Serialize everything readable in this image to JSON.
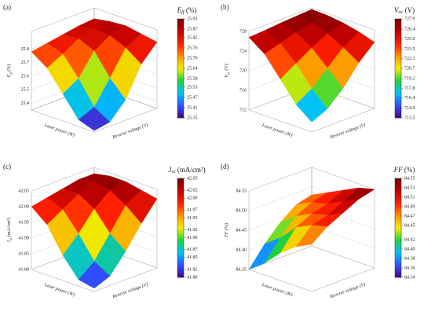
{
  "chart_data": [
    {
      "type": "surface",
      "panel": "(a)",
      "symbol": "E",
      "sub": "ff",
      "unit": "(%)",
      "xlabel": "Laser power (W)",
      "ylabel": "Reverse voltage (V)",
      "zlim": [
        25.35,
        25.93
      ],
      "zticks": [
        25.4,
        25.5,
        25.6,
        25.7,
        25.8
      ],
      "colorbar_ticks": [
        25.35,
        25.41,
        25.47,
        25.53,
        25.58,
        25.64,
        {
          "value": 25.7,
          "label": "25.70"
        },
        25.76,
        25.82,
        25.87,
        25.93
      ],
      "z": [
        [
          25.78,
          25.7,
          25.55,
          25.4,
          25.36
        ],
        [
          25.8,
          25.76,
          25.62,
          25.45,
          25.38
        ],
        [
          25.82,
          25.83,
          25.78,
          25.62,
          25.5
        ],
        [
          25.84,
          25.86,
          25.85,
          25.8,
          25.72
        ],
        [
          25.85,
          25.87,
          25.88,
          25.86,
          25.84
        ]
      ],
      "colormap": [
        "#4b0082",
        "#3050ff",
        "#00c0ff",
        "#20d040",
        "#f0f000",
        "#ff9000",
        "#ff2000",
        "#c00000",
        "#7a0000"
      ]
    },
    {
      "type": "surface",
      "panel": "(b)",
      "symbol": "V",
      "sub": "oc",
      "unit": "(V)",
      "xlabel": "Laser power (W)",
      "ylabel": "Reverse voltage (V)",
      "zlim": [
        712,
        728
      ],
      "zticks": [
        712,
        716,
        720,
        724,
        728
      ],
      "colorbar_ticks": [
        713.5,
        714.9,
        716.4,
        717.8,
        719.2,
        720.7,
        722.1,
        723.5,
        {
          "value": 725,
          "label": "725.0"
        },
        726.4,
        727.9
      ],
      "z": [
        [
          726.8,
          724.5,
          720.5,
          716.5,
          714.0
        ],
        [
          727.0,
          725.5,
          722.5,
          718.5,
          715.5
        ],
        [
          727.3,
          726.5,
          724.5,
          721.5,
          718.5
        ],
        [
          727.5,
          727.2,
          726.2,
          724.5,
          722.5
        ],
        [
          727.7,
          727.6,
          727.2,
          726.5,
          725.5
        ]
      ],
      "colormap": [
        "#4b0082",
        "#3050ff",
        "#00c0ff",
        "#20d040",
        "#f0f000",
        "#ff9000",
        "#ff2000",
        "#c00000",
        "#7a0000"
      ]
    },
    {
      "type": "surface",
      "panel": "(c)",
      "symbol": "J",
      "sub": "sc",
      "unit": "(mA/cm²)",
      "xlabel": "Laser power (W)",
      "ylabel": "Reverse voltage (V)",
      "zlim": [
        41.8,
        42.05
      ],
      "zticks": [
        {
          "value": 41.8,
          "label": "41.80"
        },
        41.85,
        {
          "value": 41.9,
          "label": "41.90"
        },
        41.95,
        {
          "value": 42,
          "label": "42.00"
        },
        42.05
      ],
      "colorbar_ticks": [
        {
          "value": 41.8,
          "label": "41.80"
        },
        41.82,
        41.85,
        41.87,
        {
          "value": 41.9,
          "label": "41.90"
        },
        41.92,
        41.95,
        41.97,
        {
          "value": 42,
          "label": "42.00"
        },
        42.02,
        42.05
      ],
      "z": [
        [
          42.0,
          41.96,
          41.88,
          41.82,
          41.81
        ],
        [
          42.01,
          41.99,
          41.93,
          41.86,
          41.83
        ],
        [
          42.02,
          42.02,
          41.99,
          41.93,
          41.89
        ],
        [
          42.03,
          42.04,
          42.03,
          42.0,
          41.96
        ],
        [
          42.03,
          42.04,
          42.04,
          42.03,
          42.02
        ]
      ],
      "colormap": [
        "#4b0082",
        "#3050ff",
        "#00c0ff",
        "#20d040",
        "#f0f000",
        "#ff9000",
        "#ff2000",
        "#c00000",
        "#7a0000"
      ]
    },
    {
      "type": "surface",
      "panel": "(d)",
      "symbol": "FF",
      "unit": "(%)",
      "xlabel": "Laser power (W)",
      "ylabel": "Reverse voltage (V)",
      "zlim": [
        84.35,
        84.55
      ],
      "zticks": [
        84.35,
        {
          "value": 84.4,
          "label": "84.40"
        },
        84.45,
        {
          "value": 84.5,
          "label": "84.50"
        },
        84.55
      ],
      "colorbar_ticks": [
        84.34,
        84.36,
        84.38,
        {
          "value": 84.4,
          "label": "84.40"
        },
        84.42,
        84.45,
        84.47,
        84.49,
        84.51,
        84.53,
        84.55
      ],
      "z": [
        [
          84.35,
          84.38,
          84.42,
          84.45,
          84.47
        ],
        [
          84.4,
          84.43,
          84.47,
          84.49,
          84.5
        ],
        [
          84.44,
          84.47,
          84.49,
          84.5,
          84.52
        ],
        [
          84.47,
          84.49,
          84.5,
          84.52,
          84.54
        ],
        [
          84.48,
          84.5,
          84.52,
          84.54,
          84.55
        ]
      ],
      "colormap": [
        "#4b0082",
        "#3050ff",
        "#00c0ff",
        "#20d040",
        "#f0f000",
        "#ff9000",
        "#ff2000",
        "#c00000",
        "#7a0000"
      ]
    }
  ]
}
